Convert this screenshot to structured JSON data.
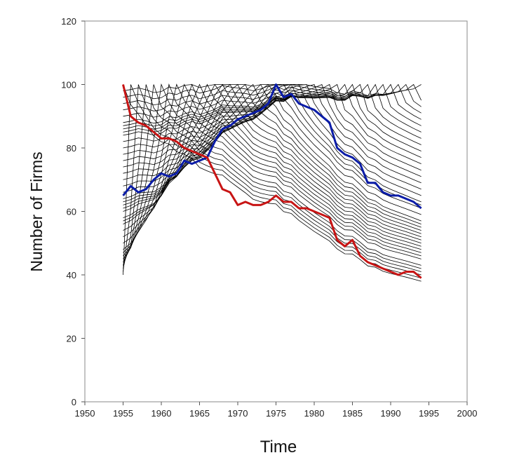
{
  "chart_data": {
    "type": "line",
    "title": "",
    "xlabel": "Time",
    "ylabel": "Number of Firms",
    "xlim": [
      1950,
      2000
    ],
    "ylim": [
      0,
      120
    ],
    "xticks": [
      1950,
      1955,
      1960,
      1965,
      1970,
      1975,
      1980,
      1985,
      1990,
      1995,
      2000
    ],
    "yticks": [
      0,
      20,
      40,
      60,
      80,
      100,
      120
    ],
    "grid": false,
    "legend": "none",
    "highlight_series": [
      {
        "color": "#0a1ca8",
        "x": [
          1955,
          1956,
          1957,
          1958,
          1959,
          1960,
          1961,
          1962,
          1963,
          1964,
          1965,
          1966,
          1967,
          1968,
          1969,
          1970,
          1971,
          1972,
          1973,
          1974,
          1975,
          1976,
          1977,
          1978,
          1979,
          1980,
          1981,
          1982,
          1983,
          1984,
          1985,
          1986,
          1987,
          1988,
          1989,
          1990,
          1991,
          1992,
          1993,
          1994
        ],
        "values": [
          65,
          68,
          66,
          67,
          70,
          72,
          71,
          72,
          76,
          75,
          76,
          77,
          82,
          86,
          87,
          89,
          90,
          91,
          92,
          94,
          100,
          96,
          97,
          94,
          93,
          92,
          90,
          88,
          80,
          78,
          77,
          75,
          69,
          69,
          66,
          65,
          65,
          64,
          63,
          61
        ]
      },
      {
        "color": "#c81414",
        "x": [
          1955,
          1956,
          1957,
          1958,
          1959,
          1960,
          1961,
          1962,
          1963,
          1964,
          1965,
          1966,
          1967,
          1968,
          1969,
          1970,
          1971,
          1972,
          1973,
          1974,
          1975,
          1976,
          1977,
          1978,
          1979,
          1980,
          1981,
          1982,
          1983,
          1984,
          1985,
          1986,
          1987,
          1988,
          1989,
          1990,
          1991,
          1992,
          1993,
          1994
        ],
        "values": [
          100,
          90,
          88,
          87,
          85,
          83,
          83,
          82,
          80,
          79,
          78,
          77,
          72,
          67,
          66,
          62,
          63,
          62,
          62,
          63,
          65,
          63,
          63,
          61,
          61,
          60,
          59,
          58,
          51,
          49,
          51,
          46,
          44,
          43,
          42,
          41,
          40,
          41,
          41,
          39
        ]
      }
    ],
    "background_series": {
      "color": "#000000",
      "x_start": 1955,
      "x_end": 1994,
      "count": 40,
      "peak_value": 100,
      "start_values": [
        39,
        40,
        41,
        42,
        43,
        44,
        45,
        46,
        47,
        48,
        50,
        52,
        54,
        56,
        57,
        58,
        60,
        61,
        62,
        63,
        64,
        66,
        68,
        70,
        72,
        74,
        76,
        78,
        80,
        82,
        84,
        85,
        86,
        87,
        88,
        90,
        92,
        94,
        96,
        98
      ],
      "end_values": [
        39,
        40,
        41,
        42,
        43,
        44,
        46,
        47,
        48,
        49,
        50,
        51,
        52,
        53,
        54,
        55,
        56,
        57,
        58,
        60,
        62,
        63,
        64,
        66,
        68,
        70,
        72,
        74,
        76,
        78,
        80,
        82,
        84,
        86,
        88,
        90,
        92,
        94,
        96,
        98
      ]
    }
  }
}
